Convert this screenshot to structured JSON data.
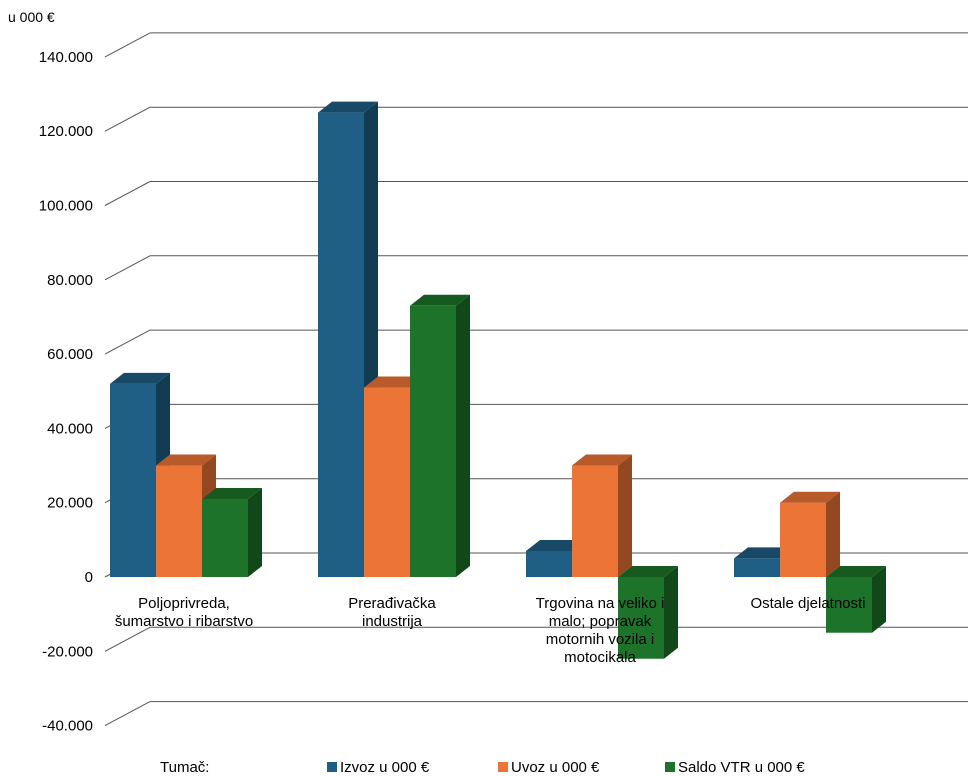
{
  "chart_data": {
    "type": "bar",
    "unit_label": "u 000 €",
    "categories": [
      [
        "Poljoprivreda,",
        "šumarstvo i ribarstvo"
      ],
      [
        "Prerađivačka",
        "industrija"
      ],
      [
        "Trgovina na veliko i",
        "malo; popravak",
        "motornih vozila i",
        "motocikala"
      ],
      [
        "Ostale djelatnosti"
      ]
    ],
    "series": [
      {
        "name": "Izvoz u 000 €",
        "values": [
          52000,
          125000,
          7000,
          5000
        ],
        "color": "#1f5f85"
      },
      {
        "name": "Uvoz u 000 €",
        "values": [
          30000,
          51000,
          30000,
          20000
        ],
        "color": "#ed7437"
      },
      {
        "name": "Saldo VTR u 000 €",
        "values": [
          21000,
          73000,
          -22000,
          -15000
        ],
        "color": "#1c7329"
      }
    ],
    "yticks": [
      "-40.000",
      "-20.000",
      "0",
      "20.000",
      "40.000",
      "60.000",
      "80.000",
      "100.000",
      "120.000",
      "140.000"
    ],
    "ylim": [
      -40000,
      140000
    ],
    "grid": true,
    "legend_title": "Tumač:",
    "legend_position": "bottom"
  }
}
